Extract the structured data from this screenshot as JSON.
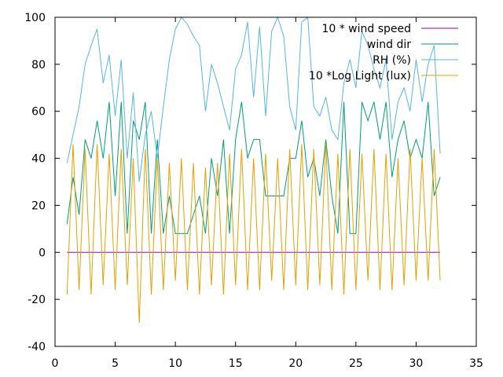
{
  "chart_data": {
    "type": "line",
    "xlim": [
      0,
      35
    ],
    "ylim": [
      -40,
      100
    ],
    "x_ticks": [
      0,
      5,
      10,
      15,
      20,
      25,
      30,
      35
    ],
    "y_ticks": [
      -40,
      -20,
      0,
      20,
      40,
      60,
      80,
      100
    ],
    "x_tick_labels": [
      "0",
      "5",
      "10",
      "15",
      "20",
      "25",
      "30",
      "35"
    ],
    "y_tick_labels": [
      "-40",
      "-20",
      "0",
      "20",
      "40",
      "60",
      "80",
      "100"
    ],
    "grid": false,
    "legend_position": "top-right",
    "series": [
      {
        "name": "10 * wind speed",
        "color": "#9400d3",
        "x": [
          1.0,
          32.0
        ],
        "y": [
          0,
          0
        ]
      },
      {
        "name": "wind dir",
        "color": "#009e73",
        "x": [
          1.0,
          1.5,
          2.0,
          2.5,
          3.0,
          3.5,
          4.0,
          4.5,
          5.0,
          5.5,
          6.0,
          6.5,
          7.0,
          7.5,
          8.0,
          8.5,
          9.0,
          9.5,
          10.0,
          10.5,
          11.0,
          11.5,
          12.0,
          12.5,
          13.0,
          13.5,
          14.0,
          14.5,
          15.0,
          15.5,
          16.0,
          16.5,
          17.0,
          17.5,
          18.0,
          18.5,
          19.0,
          19.5,
          20.0,
          20.5,
          21.0,
          21.5,
          22.0,
          22.5,
          23.0,
          23.5,
          24.0,
          24.5,
          25.0,
          25.5,
          26.0,
          26.5,
          27.0,
          27.5,
          28.0,
          28.5,
          29.0,
          29.5,
          30.0,
          30.5,
          31.0,
          31.5,
          32.0
        ],
        "y": [
          12,
          32,
          16,
          48,
          40,
          56,
          40,
          64,
          24,
          64,
          8,
          56,
          48,
          64,
          8,
          48,
          8,
          24,
          8,
          8,
          8,
          16,
          24,
          8,
          40,
          24,
          48,
          8,
          48,
          64,
          40,
          48,
          48,
          24,
          24,
          24,
          24,
          40,
          40,
          56,
          32,
          40,
          24,
          48,
          24,
          8,
          64,
          8,
          8,
          64,
          56,
          64,
          48,
          64,
          32,
          48,
          56,
          40,
          48,
          40,
          64,
          24,
          32
        ]
      },
      {
        "name": "RH (%)",
        "color": "#56b4e9",
        "x": [
          1.0,
          1.5,
          2.0,
          2.5,
          3.0,
          3.5,
          4.0,
          4.5,
          5.0,
          5.5,
          6.0,
          6.5,
          7.0,
          7.5,
          8.0,
          8.5,
          9.0,
          9.5,
          10.0,
          10.5,
          11.0,
          11.5,
          12.0,
          12.5,
          13.0,
          13.5,
          14.0,
          14.5,
          15.0,
          15.5,
          16.0,
          16.5,
          17.0,
          17.5,
          18.0,
          18.5,
          19.0,
          19.5,
          20.0,
          20.5,
          21.0,
          21.5,
          22.0,
          22.5,
          23.0,
          23.5,
          24.0,
          24.5,
          25.0,
          25.5,
          26.0,
          26.5,
          27.0,
          27.5,
          28.0,
          28.5,
          29.0,
          29.5,
          30.0,
          30.5,
          31.0,
          31.5,
          32.0
        ],
        "y": [
          38,
          50,
          62,
          80,
          88,
          95,
          72,
          84,
          58,
          82,
          40,
          68,
          30,
          50,
          60,
          40,
          62,
          82,
          95,
          100,
          97,
          92,
          88,
          60,
          80,
          72,
          62,
          52,
          78,
          84,
          98,
          66,
          96,
          58,
          94,
          100,
          92,
          62,
          52,
          98,
          100,
          62,
          58,
          66,
          52,
          48,
          72,
          82,
          70,
          94,
          88,
          78,
          70,
          82,
          48,
          64,
          70,
          60,
          82,
          64,
          80,
          88,
          42
        ]
      },
      {
        "name": "10 *Log Light (lux)",
        "color": "#e69f00",
        "x": [
          1.0,
          1.5,
          2.0,
          2.5,
          3.0,
          3.5,
          4.0,
          4.5,
          5.0,
          5.5,
          6.0,
          6.5,
          7.0,
          7.5,
          8.0,
          8.5,
          9.0,
          9.5,
          10.0,
          10.5,
          11.0,
          11.5,
          12.0,
          12.5,
          13.0,
          13.5,
          14.0,
          14.5,
          15.0,
          15.5,
          16.0,
          16.5,
          17.0,
          17.5,
          18.0,
          18.5,
          19.0,
          19.5,
          20.0,
          20.5,
          21.0,
          21.5,
          22.0,
          22.5,
          23.0,
          23.5,
          24.0,
          24.5,
          25.0,
          25.5,
          26.0,
          26.5,
          27.0,
          27.5,
          28.0,
          28.5,
          29.0,
          29.5,
          30.0,
          30.5,
          31.0,
          31.5,
          32.0
        ],
        "y": [
          -18,
          46,
          -16,
          44,
          -18,
          46,
          -14,
          42,
          -16,
          44,
          -14,
          40,
          -30,
          44,
          -18,
          40,
          -16,
          38,
          -12,
          40,
          -16,
          38,
          -18,
          36,
          -14,
          38,
          -18,
          42,
          -14,
          44,
          -16,
          40,
          -16,
          42,
          -12,
          40,
          -16,
          44,
          -14,
          46,
          -16,
          44,
          -14,
          46,
          -16,
          42,
          -18,
          44,
          -16,
          42,
          -12,
          44,
          -16,
          42,
          -16,
          40,
          -14,
          44,
          -12,
          40,
          -12,
          44,
          -12
        ]
      }
    ]
  }
}
